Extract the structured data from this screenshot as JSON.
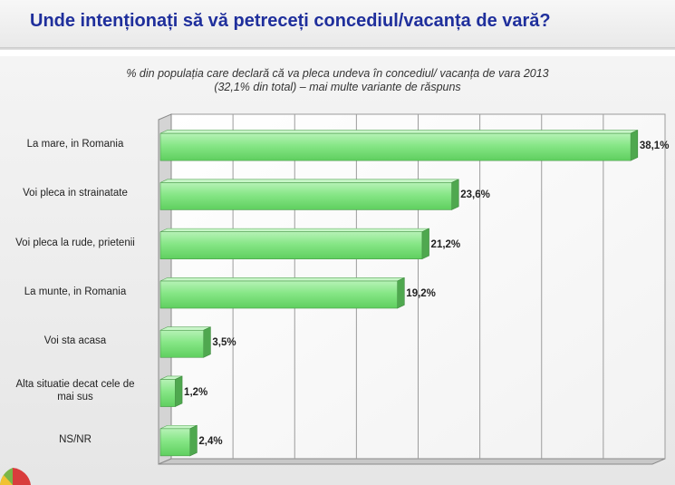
{
  "header": {
    "title": "Unde intenționați să vă petreceți concediul/vacanța de vară?"
  },
  "chart_data": {
    "type": "bar",
    "orientation": "horizontal",
    "subtitle_line1": "% din populația care declară că va pleca undeva în concediul/ vacanța de vara 2013",
    "subtitle_line2": "(32,1% din total) – mai multe variante de răspuns",
    "categories": [
      "La mare, in Romania",
      "Voi pleca in strainatate",
      "Voi pleca la rude, prietenii",
      "La munte, in Romania",
      "Voi sta acasa",
      "Alta situatie decat cele de mai sus",
      "NS/NR"
    ],
    "values": [
      38.1,
      23.6,
      21.2,
      19.2,
      3.5,
      1.2,
      2.4
    ],
    "value_labels": [
      "38,1%",
      "23,6%",
      "21,2%",
      "19,2%",
      "3,5%",
      "1,2%",
      "2,4%"
    ],
    "xlim": [
      0,
      40
    ],
    "grid": true,
    "bar_color": "#7fe07f",
    "bar_side_color": "#4fa84f"
  }
}
